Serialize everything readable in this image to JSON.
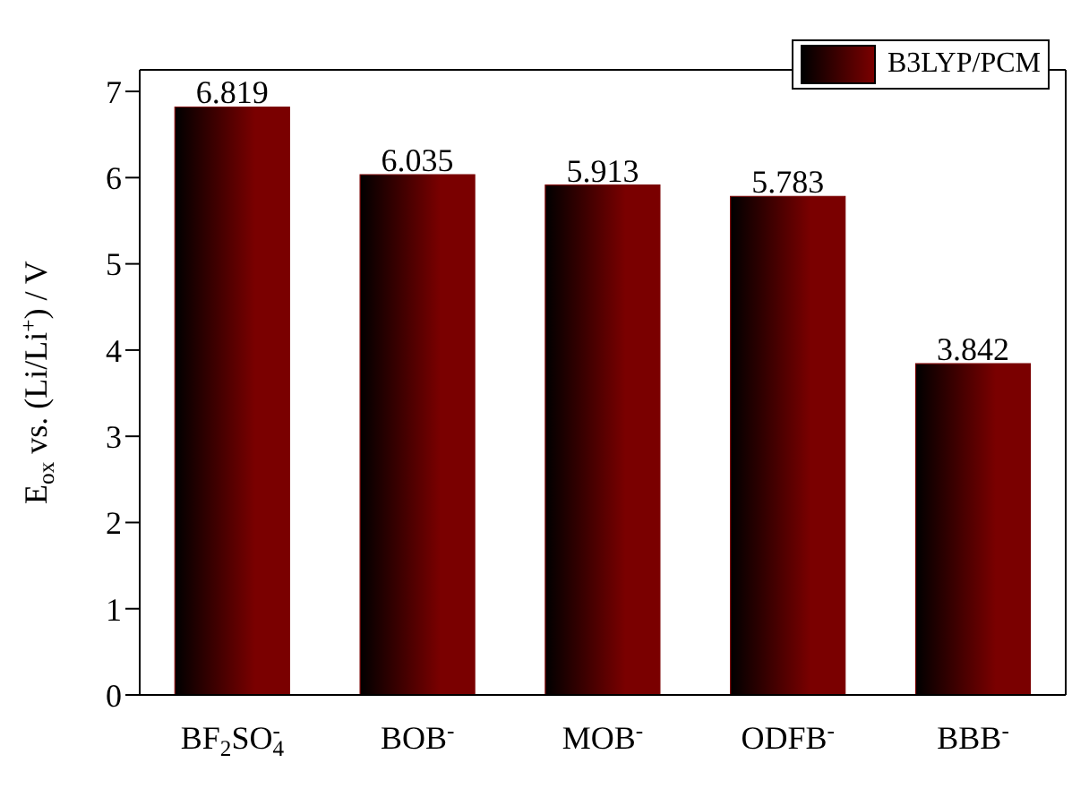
{
  "chart_data": {
    "type": "bar",
    "ylabel": "E$_{ox}$ vs. (Li/Li$^{+}$) / V",
    "categories": [
      "BF$_{2}$SO$_{4}$$^{-}$",
      "BOB$^{-}$",
      "MOB$^{-}$",
      "ODFB$^{-}$",
      "BBB$^{-}$"
    ],
    "series": [
      {
        "name": "B3LYP/PCM",
        "color": "#7a0000",
        "values": [
          6.819,
          6.035,
          5.913,
          5.783,
          3.842
        ]
      }
    ],
    "ylim": [
      0,
      7.25
    ],
    "yticks": [
      0,
      1,
      2,
      3,
      4,
      5,
      6,
      7
    ],
    "data_labels": true,
    "legend": "top right",
    "grid": false
  }
}
